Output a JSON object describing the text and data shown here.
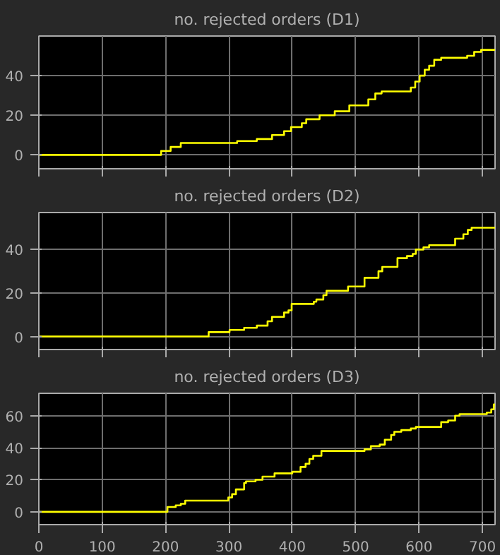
{
  "chart_data": [
    {
      "type": "step",
      "title": "no. rejected orders (D1)",
      "xlim": [
        0,
        720
      ],
      "xticks": [
        0,
        100,
        200,
        300,
        400,
        500,
        600,
        700
      ],
      "ylim": [
        -7,
        60
      ],
      "yticks": [
        0,
        20,
        40
      ],
      "grid": true,
      "tick_labels": "y",
      "series": [
        {
          "color": "#ffff00",
          "x": [
            0,
            193,
            208,
            224,
            313,
            344,
            368,
            387,
            398,
            415,
            422,
            443,
            467,
            490,
            520,
            531,
            541,
            587,
            594,
            601,
            609,
            616,
            624,
            635,
            676,
            687,
            698,
            720
          ],
          "values": [
            0,
            2,
            4,
            6,
            7,
            8,
            10,
            12,
            14,
            16,
            18,
            20,
            22,
            25,
            28,
            31,
            32,
            34,
            37,
            40,
            43,
            45,
            48,
            49,
            50,
            52,
            53,
            53
          ]
        }
      ]
    },
    {
      "type": "step",
      "title": "no. rejected orders (D2)",
      "xlim": [
        0,
        720
      ],
      "xticks": [
        0,
        100,
        200,
        300,
        400,
        500,
        600,
        700
      ],
      "ylim": [
        -6,
        57
      ],
      "yticks": [
        0,
        20,
        40
      ],
      "grid": true,
      "tick_labels": "y",
      "series": [
        {
          "color": "#ffff00",
          "x": [
            0,
            268,
            301,
            324,
            344,
            361,
            368,
            387,
            394,
            399,
            434,
            438,
            449,
            454,
            488,
            514,
            536,
            542,
            566,
            581,
            590,
            595,
            607,
            616,
            657,
            670,
            677,
            683,
            720
          ],
          "values": [
            0,
            2,
            3,
            4,
            5,
            7,
            9,
            11,
            12,
            15,
            16,
            17,
            19,
            21,
            23,
            27,
            30,
            32,
            36,
            37,
            38,
            40,
            41,
            42,
            45,
            47,
            49,
            50,
            50
          ]
        }
      ]
    },
    {
      "type": "step",
      "title": "no. rejected orders (D3)",
      "xlim": [
        0,
        720
      ],
      "xticks": [
        0,
        100,
        200,
        300,
        400,
        500,
        600,
        700
      ],
      "ylim": [
        -8,
        74
      ],
      "yticks": [
        0,
        20,
        40,
        60
      ],
      "grid": true,
      "series": [
        {
          "color": "#ffff00",
          "x": [
            0,
            203,
            216,
            224,
            231,
            299,
            305,
            311,
            324,
            327,
            342,
            353,
            372,
            400,
            413,
            421,
            427,
            433,
            446,
            514,
            524,
            538,
            546,
            556,
            561,
            572,
            587,
            595,
            635,
            646,
            657,
            664,
            707,
            714,
            718,
            720
          ],
          "values": [
            0,
            3,
            4,
            5,
            7,
            9,
            11,
            14,
            18,
            19,
            20,
            22,
            24,
            25,
            28,
            30,
            33,
            35,
            38,
            39,
            41,
            42,
            45,
            48,
            50,
            51,
            52,
            53,
            56,
            57,
            60,
            61,
            62,
            64,
            67,
            67
          ]
        }
      ]
    }
  ]
}
